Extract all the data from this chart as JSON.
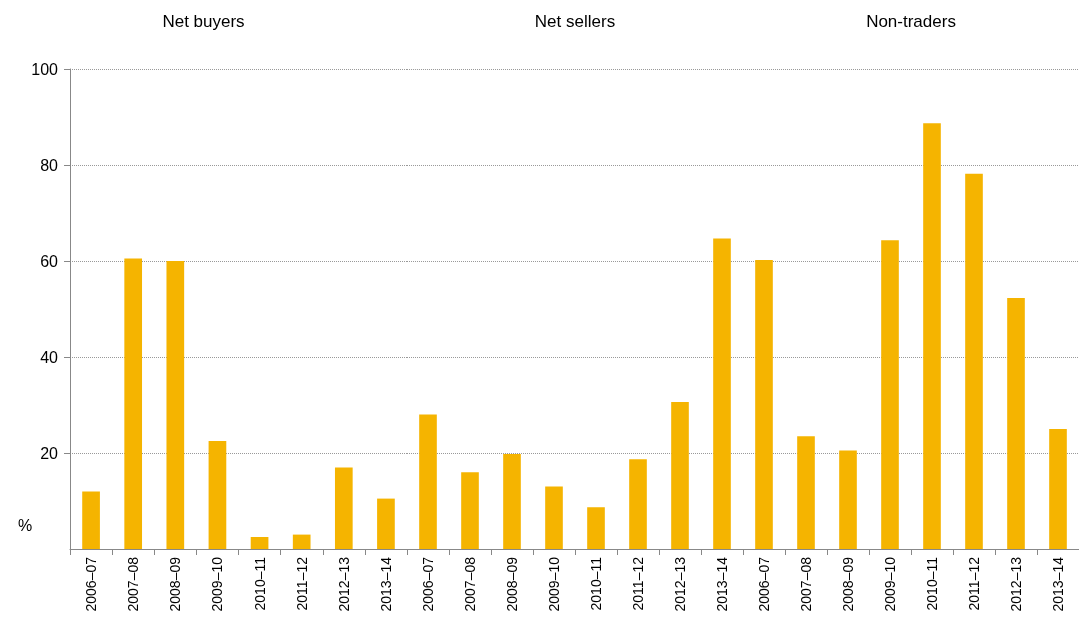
{
  "chart_data": [
    {
      "type": "bar",
      "title": "Net buyers",
      "categories": [
        "2006–07",
        "2007–08",
        "2008–09",
        "2009–10",
        "2010–11",
        "2011–12",
        "2012–13",
        "2013–14"
      ],
      "values": [
        12,
        60.5,
        60,
        22.5,
        2.5,
        3,
        17,
        10.5
      ],
      "color": "#f5b400",
      "ylabel": "%",
      "ylim": [
        0,
        100
      ],
      "yticks": [
        20,
        40,
        60,
        80,
        100
      ],
      "grid": "y"
    },
    {
      "type": "bar",
      "title": "Net sellers",
      "categories": [
        "2006–07",
        "2007–08",
        "2008–09",
        "2009–10",
        "2010–11",
        "2011–12",
        "2012–13",
        "2013–14"
      ],
      "values": [
        28,
        16,
        19.8,
        13,
        8.7,
        18.7,
        30.6,
        64.7
      ],
      "color": "#f5b400",
      "ylim": [
        0,
        100
      ],
      "yticks": [
        20,
        40,
        60,
        80,
        100
      ],
      "grid": "y",
      "tick_labels": "x"
    },
    {
      "type": "bar",
      "title": "Non-traders",
      "categories": [
        "2006–07",
        "2007–08",
        "2008–09",
        "2009–10",
        "2010–11",
        "2011–12",
        "2012–13",
        "2013–14"
      ],
      "values": [
        60.2,
        23.5,
        20.5,
        64.3,
        88.7,
        78.2,
        52.3,
        25
      ],
      "color": "#f5b400",
      "ylim": [
        0,
        100
      ],
      "yticks": [
        20,
        40,
        60,
        80,
        100
      ],
      "grid": "y",
      "tick_labels": "x"
    }
  ]
}
